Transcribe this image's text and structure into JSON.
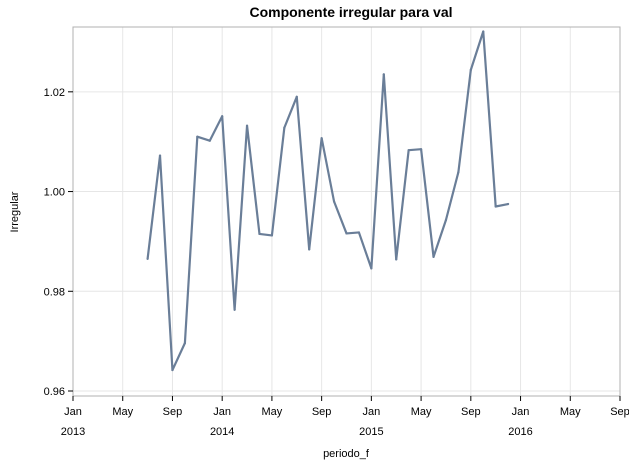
{
  "chart_data": {
    "type": "line",
    "title": "Componente irregular para val",
    "xlabel": "periodo_f",
    "ylabel": "Irregular",
    "ylim": [
      0.959,
      1.033
    ],
    "xlim": [
      "2013-01",
      "2016-09"
    ],
    "grid": true,
    "y_ticks": [
      {
        "value": 0.96,
        "label": "0.96"
      },
      {
        "value": 0.98,
        "label": "0.98"
      },
      {
        "value": 1.0,
        "label": "1.00"
      },
      {
        "value": 1.02,
        "label": "1.02"
      }
    ],
    "x_ticks": [
      {
        "date": "2013-01",
        "label": "Jan",
        "year": "2013"
      },
      {
        "date": "2013-05",
        "label": "May",
        "year": ""
      },
      {
        "date": "2013-09",
        "label": "Sep",
        "year": ""
      },
      {
        "date": "2014-01",
        "label": "Jan",
        "year": "2014"
      },
      {
        "date": "2014-05",
        "label": "May",
        "year": ""
      },
      {
        "date": "2014-09",
        "label": "Sep",
        "year": ""
      },
      {
        "date": "2015-01",
        "label": "Jan",
        "year": "2015"
      },
      {
        "date": "2015-05",
        "label": "May",
        "year": ""
      },
      {
        "date": "2015-09",
        "label": "Sep",
        "year": ""
      },
      {
        "date": "2016-01",
        "label": "Jan",
        "year": "2016"
      },
      {
        "date": "2016-05",
        "label": "May",
        "year": ""
      },
      {
        "date": "2016-09",
        "label": "Sep",
        "year": ""
      }
    ],
    "series": [
      {
        "color": "#6a7e98",
        "points": [
          {
            "x": "2013-07",
            "y": 0.9865
          },
          {
            "x": "2013-08",
            "y": 1.0072
          },
          {
            "x": "2013-09",
            "y": 0.9642
          },
          {
            "x": "2013-10",
            "y": 0.9696
          },
          {
            "x": "2013-11",
            "y": 1.011
          },
          {
            "x": "2013-12",
            "y": 1.0102
          },
          {
            "x": "2014-01",
            "y": 1.0151
          },
          {
            "x": "2014-02",
            "y": 0.9763
          },
          {
            "x": "2014-03",
            "y": 1.0132
          },
          {
            "x": "2014-04",
            "y": 0.9915
          },
          {
            "x": "2014-05",
            "y": 0.9912
          },
          {
            "x": "2014-06",
            "y": 1.0128
          },
          {
            "x": "2014-07",
            "y": 1.019
          },
          {
            "x": "2014-08",
            "y": 0.9884
          },
          {
            "x": "2014-09",
            "y": 1.0107
          },
          {
            "x": "2014-10",
            "y": 0.998
          },
          {
            "x": "2014-11",
            "y": 0.9916
          },
          {
            "x": "2014-12",
            "y": 0.9918
          },
          {
            "x": "2015-01",
            "y": 0.9846
          },
          {
            "x": "2015-02",
            "y": 1.0235
          },
          {
            "x": "2015-03",
            "y": 0.9864
          },
          {
            "x": "2015-04",
            "y": 1.0083
          },
          {
            "x": "2015-05",
            "y": 1.0085
          },
          {
            "x": "2015-06",
            "y": 0.9869
          },
          {
            "x": "2015-07",
            "y": 0.9943
          },
          {
            "x": "2015-08",
            "y": 1.0039
          },
          {
            "x": "2015-09",
            "y": 1.0244
          },
          {
            "x": "2015-10",
            "y": 1.0321
          },
          {
            "x": "2015-11",
            "y": 0.997
          },
          {
            "x": "2015-12",
            "y": 0.9975
          }
        ]
      }
    ]
  }
}
